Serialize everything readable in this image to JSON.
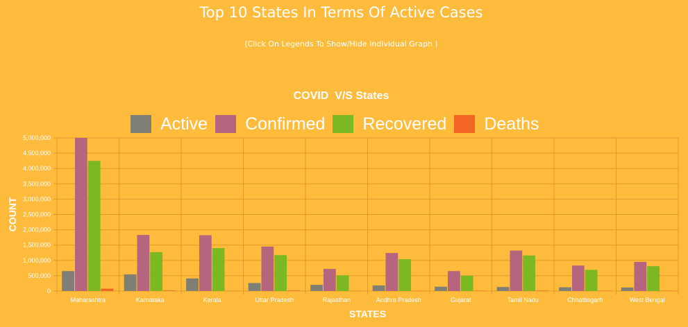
{
  "header": {
    "title": "Top 10 States In Terms Of Active Cases",
    "subtitle": "(Click On Legends To Show/Hide Individual Graph )"
  },
  "colors": {
    "background": "#FFBB3C",
    "active": "#7F7F75",
    "confirmed": "#B5667E",
    "recovered": "#7CB821",
    "deaths": "#F26522",
    "grid": "#E09A2A"
  },
  "chart_data": {
    "type": "bar",
    "title": "COVID  V/S States",
    "xlabel": "STATES",
    "ylabel": "COUNT",
    "ylim": [
      0,
      5000000
    ],
    "yticks": [
      0,
      500000,
      1000000,
      1500000,
      2000000,
      2500000,
      3000000,
      3500000,
      4000000,
      4500000,
      5000000
    ],
    "ytick_labels": [
      "0",
      "500,000",
      "1,000,000",
      "1,500,000",
      "2,000,000",
      "2,500,000",
      "3,000,000",
      "3,500,000",
      "4,000,000",
      "4,500,000",
      "5,000,000"
    ],
    "grid": true,
    "legend_position": "top",
    "categories": [
      "Maharashtra",
      "Karnataka",
      "Kerala",
      "Uttar Pradesh",
      "Rajasthan",
      "Andhra Pradesh",
      "Gujarat",
      "Tamil Nadu",
      "Chhattisgarh",
      "West Bengal"
    ],
    "series": [
      {
        "name": "Active",
        "color_key": "active",
        "values": [
          650000,
          540000,
          410000,
          260000,
          200000,
          180000,
          140000,
          130000,
          120000,
          115000
        ]
      },
      {
        "name": "Confirmed",
        "color_key": "confirmed",
        "values": [
          5000000,
          1830000,
          1820000,
          1450000,
          720000,
          1240000,
          650000,
          1320000,
          830000,
          950000
        ]
      },
      {
        "name": "Recovered",
        "color_key": "recovered",
        "values": [
          4250000,
          1270000,
          1400000,
          1170000,
          510000,
          1040000,
          500000,
          1160000,
          690000,
          810000
        ]
      },
      {
        "name": "Deaths",
        "color_key": "deaths",
        "values": [
          75000,
          18000,
          6000,
          17000,
          5000,
          8000,
          9000,
          15000,
          11000,
          11000
        ]
      }
    ]
  }
}
